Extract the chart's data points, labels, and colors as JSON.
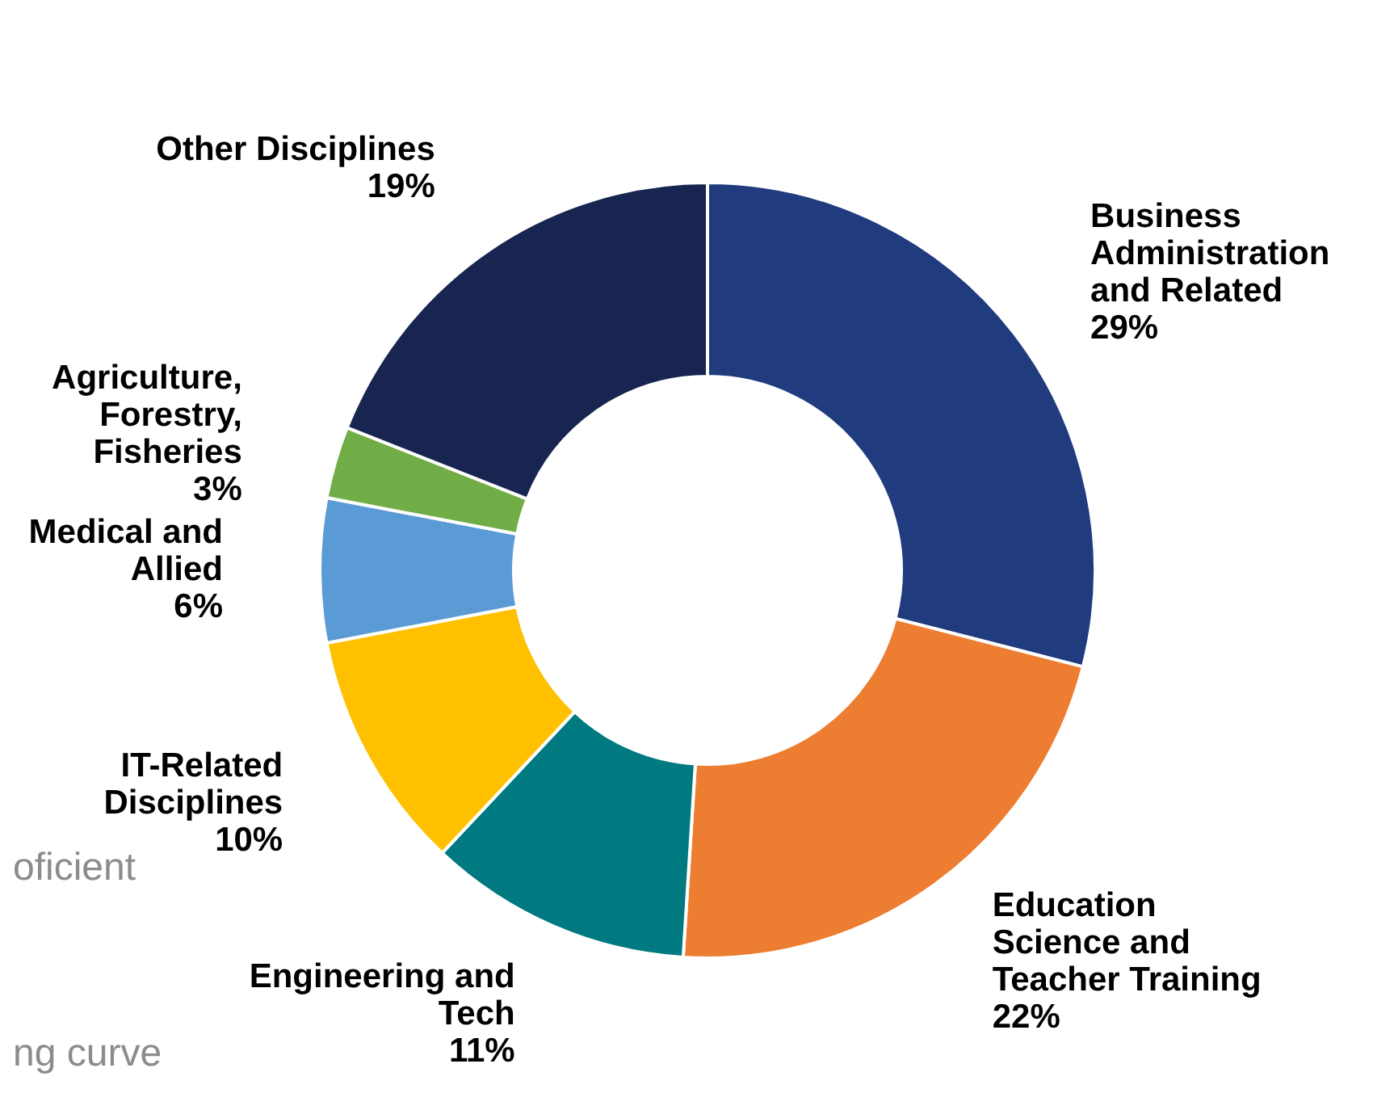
{
  "chart_data": {
    "type": "donut",
    "categories": [
      "Business Administration and Related",
      "Education Science and Teacher Training",
      "Engineering and Tech",
      "IT-Related Disciplines",
      "Medical and Allied",
      "Agriculture, Forestry, Fisheries",
      "Other Disciplines"
    ],
    "values": [
      29,
      22,
      11,
      10,
      6,
      3,
      19
    ],
    "value_labels": [
      "29%",
      "22%",
      "11%",
      "10%",
      "6%",
      "3%",
      "19%"
    ],
    "colors": [
      "#203c7f",
      "#ed7d31",
      "#007a80",
      "#ffc000",
      "#5b9bd5",
      "#70ad47",
      "#172550"
    ],
    "legend": false,
    "annotations": [
      "oficient",
      "ng curve"
    ]
  }
}
